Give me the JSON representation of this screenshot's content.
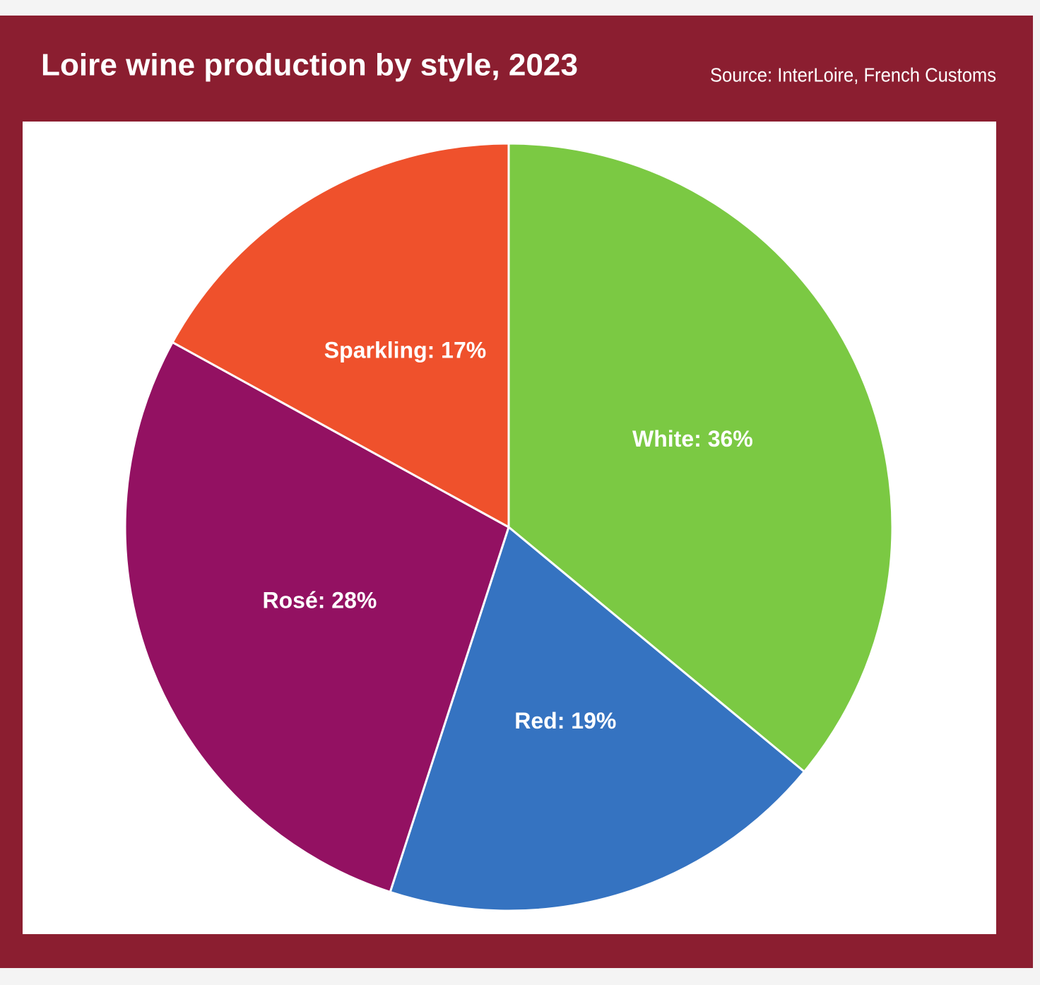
{
  "chart_data": {
    "type": "pie",
    "title": "Loire wine production by style, 2023",
    "source": "Source: InterLoire, French Customs",
    "values": [
      36,
      19,
      28,
      17
    ],
    "value_labels": [
      "White: 36%",
      "Red: 19%",
      "Rosé: 28%",
      "Sparkling: 17%"
    ],
    "colors": [
      "#7bc943",
      "#3573c1",
      "#931162",
      "#ef512c"
    ]
  }
}
